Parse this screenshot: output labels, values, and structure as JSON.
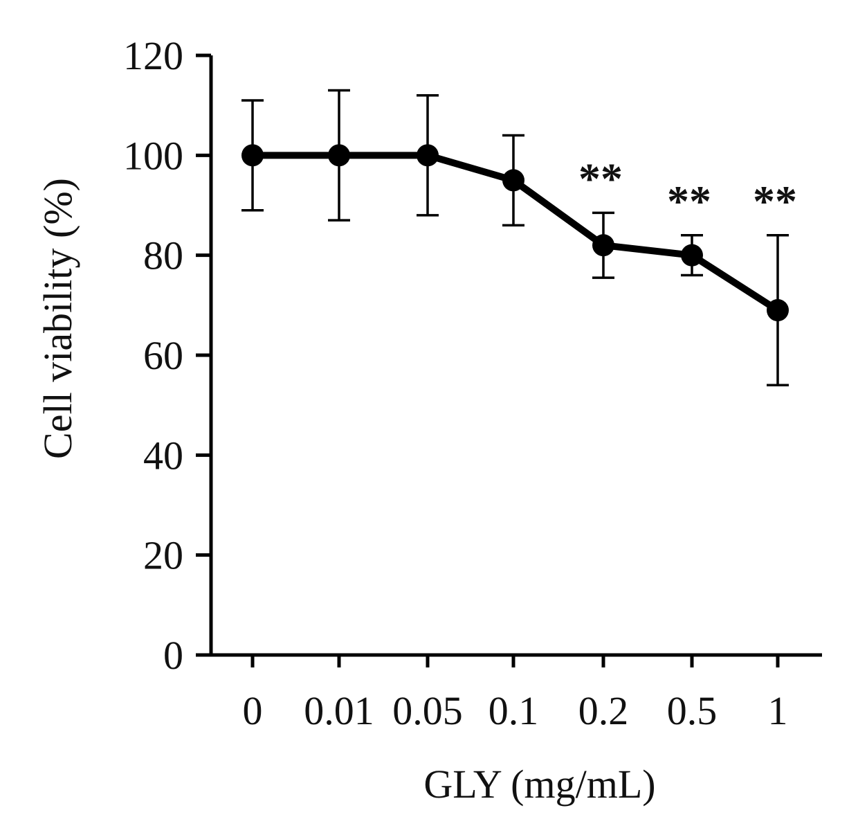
{
  "chart_data": {
    "type": "line",
    "title": "",
    "xlabel": "GLY (mg/mL)",
    "ylabel": "Cell viability (%)",
    "categories": [
      "0",
      "0.01",
      "0.05",
      "0.1",
      "0.2",
      "0.5",
      "1"
    ],
    "ylim": [
      0,
      120
    ],
    "yticks": [
      "0",
      "20",
      "40",
      "60",
      "80",
      "100",
      "120"
    ],
    "grid": false,
    "series": [
      {
        "name": "Cell viability",
        "values": [
          100,
          100,
          100,
          95,
          82,
          80,
          69
        ],
        "error": [
          11,
          13,
          12,
          9,
          6.5,
          4,
          15
        ]
      }
    ],
    "annotations": [
      "",
      "",
      "",
      "",
      "**",
      "**",
      "**"
    ]
  }
}
